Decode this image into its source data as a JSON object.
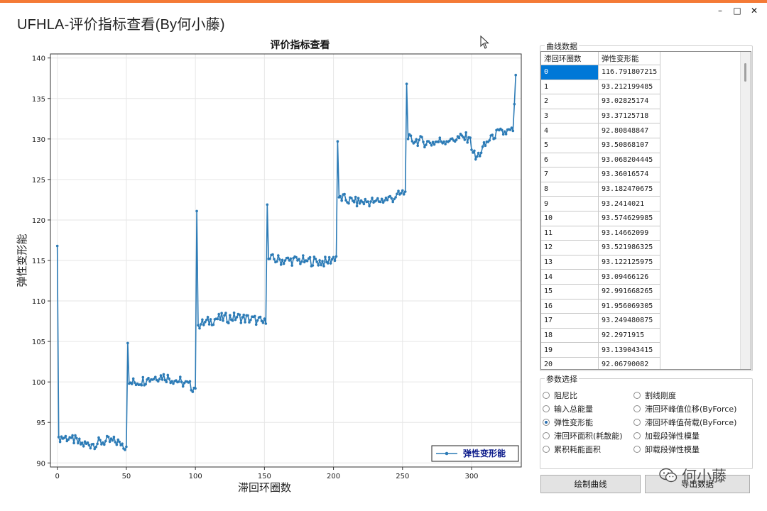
{
  "window": {
    "title": "UFHLA-评价指标查看(By何小藤)",
    "controls": {
      "minimize": "–",
      "maximize": "□",
      "close": "✕"
    }
  },
  "chart_data": {
    "type": "line",
    "title": "评价指标查看",
    "xlabel": "滞回环圈数",
    "ylabel": "弹性变形能",
    "xlim": [
      -5,
      336
    ],
    "ylim": [
      89.5,
      140.5
    ],
    "xticks": [
      0,
      50,
      100,
      150,
      200,
      250,
      300
    ],
    "yticks": [
      90,
      95,
      100,
      105,
      110,
      115,
      120,
      125,
      130,
      135,
      140
    ],
    "grid": true,
    "legend_position": "bottom-right",
    "series": [
      {
        "name": "弹性变形能",
        "color": "#2c7bb6",
        "anchors": [
          {
            "x": 0,
            "y": 116.8
          },
          {
            "x": 1,
            "y": 93.2
          },
          {
            "x": 10,
            "y": 93.1
          },
          {
            "x": 17,
            "y": 92.3
          },
          {
            "x": 25,
            "y": 92.3
          },
          {
            "x": 35,
            "y": 92.7
          },
          {
            "x": 45,
            "y": 92.6
          },
          {
            "x": 50,
            "y": 92.0
          },
          {
            "x": 51,
            "y": 104.8
          },
          {
            "x": 52,
            "y": 99.8
          },
          {
            "x": 65,
            "y": 100.3
          },
          {
            "x": 75,
            "y": 100.8
          },
          {
            "x": 90,
            "y": 100.0
          },
          {
            "x": 100,
            "y": 99.2
          },
          {
            "x": 101,
            "y": 121.1
          },
          {
            "x": 102,
            "y": 107.0
          },
          {
            "x": 115,
            "y": 107.8
          },
          {
            "x": 130,
            "y": 108.0
          },
          {
            "x": 145,
            "y": 107.6
          },
          {
            "x": 151,
            "y": 107.2
          },
          {
            "x": 152,
            "y": 121.9
          },
          {
            "x": 153,
            "y": 115.2
          },
          {
            "x": 165,
            "y": 115.0
          },
          {
            "x": 180,
            "y": 115.0
          },
          {
            "x": 195,
            "y": 114.8
          },
          {
            "x": 202,
            "y": 115.5
          },
          {
            "x": 203,
            "y": 129.7
          },
          {
            "x": 204,
            "y": 122.8
          },
          {
            "x": 215,
            "y": 122.2
          },
          {
            "x": 230,
            "y": 122.3
          },
          {
            "x": 245,
            "y": 122.8
          },
          {
            "x": 252,
            "y": 123.5
          },
          {
            "x": 253,
            "y": 136.8
          },
          {
            "x": 254,
            "y": 130.0
          },
          {
            "x": 270,
            "y": 129.5
          },
          {
            "x": 285,
            "y": 130.0
          },
          {
            "x": 298,
            "y": 130.2
          },
          {
            "x": 303,
            "y": 127.5
          },
          {
            "x": 315,
            "y": 130.5
          },
          {
            "x": 330,
            "y": 131.0
          },
          {
            "x": 332,
            "y": 137.9
          }
        ]
      }
    ]
  },
  "curve_data": {
    "group_label": "曲线数据",
    "columns": [
      "滞回环圈数",
      "弹性变形能"
    ],
    "rows": [
      [
        "0",
        "116.791807215"
      ],
      [
        "1",
        "93.212199485"
      ],
      [
        "2",
        "93.02825174"
      ],
      [
        "3",
        "93.37125718"
      ],
      [
        "4",
        "92.80848847"
      ],
      [
        "5",
        "93.50868107"
      ],
      [
        "6",
        "93.068204445"
      ],
      [
        "7",
        "93.36016574"
      ],
      [
        "8",
        "93.182470675"
      ],
      [
        "9",
        "93.2414021"
      ],
      [
        "10",
        "93.574629985"
      ],
      [
        "11",
        "93.14662099"
      ],
      [
        "12",
        "93.521986325"
      ],
      [
        "13",
        "93.122125975"
      ],
      [
        "14",
        "93.09466126"
      ],
      [
        "15",
        "92.991668265"
      ],
      [
        "16",
        "91.956069305"
      ],
      [
        "17",
        "93.249480875"
      ],
      [
        "18",
        "92.2971915"
      ],
      [
        "19",
        "93.139043415"
      ],
      [
        "20",
        "92.06790082"
      ]
    ]
  },
  "params": {
    "group_label": "参数选择",
    "left": [
      "阻尼比",
      "输入总能量",
      "弹性变形能",
      "滞回环面积(耗散能)",
      "累积耗能面积"
    ],
    "right": [
      "割线刚度",
      "滞回环峰值位移(ByForce)",
      "滞回环峰值荷载(ByForce)",
      "加载段弹性模量",
      "卸载段弹性模量"
    ],
    "selected": "弹性变形能"
  },
  "buttons": {
    "draw": "绘制曲线",
    "export": "导出数据"
  },
  "watermark": {
    "text": "何小藤",
    "icon": "wechat-icon"
  }
}
